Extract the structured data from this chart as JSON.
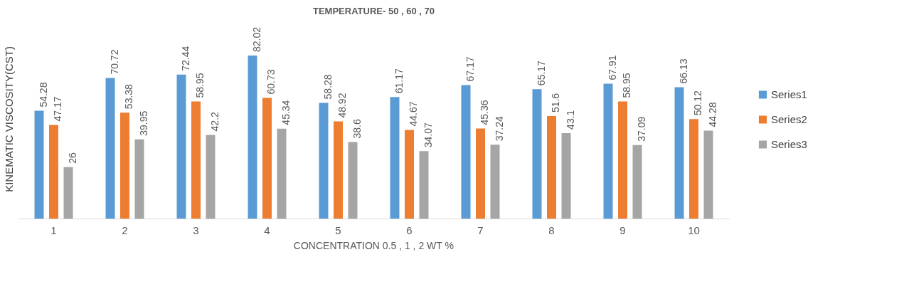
{
  "chart_data": {
    "type": "bar",
    "title": "TEMPERATURE- 50 , 60 , 70",
    "xlabel": "CONCENTRATION 0.5 , 1 , 2 WT %",
    "ylabel": "KINEMATIC VISCOSITY(CST)",
    "categories": [
      "1",
      "2",
      "3",
      "4",
      "5",
      "6",
      "7",
      "8",
      "9",
      "10"
    ],
    "series": [
      {
        "name": "Series1",
        "color": "#5b9bd5",
        "values": [
          54.28,
          70.72,
          72.44,
          82.02,
          58.28,
          61.17,
          67.17,
          65.17,
          67.91,
          66.13
        ]
      },
      {
        "name": "Series2",
        "color": "#ed7d31",
        "values": [
          47.17,
          53.38,
          58.95,
          60.73,
          48.92,
          44.67,
          45.36,
          51.6,
          58.95,
          50.12
        ]
      },
      {
        "name": "Series3",
        "color": "#a5a5a5",
        "values": [
          26,
          39.95,
          42.2,
          45.34,
          38.6,
          34.07,
          37.24,
          43.1,
          37.09,
          44.28
        ]
      }
    ],
    "data_labels": true,
    "legend": "right",
    "grid": false,
    "tick_labels": "x"
  }
}
